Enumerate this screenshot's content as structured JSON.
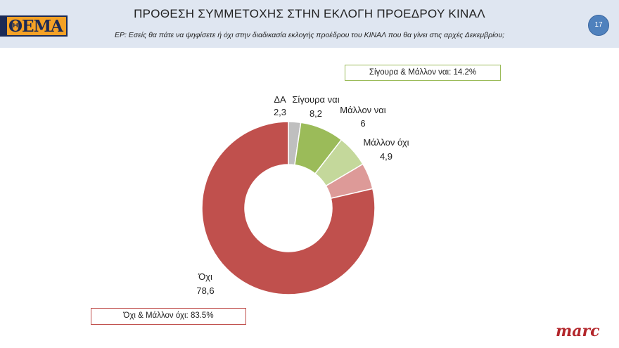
{
  "header": {
    "logo_text": "ΘΕΜΑ",
    "title": "ΠΡΟΘΕΣΗ ΣΥΜΜΕΤΟΧΗΣ ΣΤΗΝ ΕΚΛΟΓΗ ΠΡΟΕΔΡΟΥ ΚΙΝΑΛ",
    "subtitle": "ΕΡ: Εσείς θα πάτε να ψηφίσετε ή όχι στην διαδικασία εκλογής προέδρου του ΚΙΝΑΛ που θα γίνει στις αρχές Δεκεμβρίου;",
    "page_number": "17"
  },
  "summary": {
    "yes_box": "Σίγουρα & Μάλλον ναι: 14.2%",
    "no_box": "Όχι & Μάλλον όχι: 83.5%"
  },
  "footer": {
    "brand": "marc"
  },
  "chart_data": {
    "type": "pie",
    "donut": true,
    "slices": [
      {
        "label": "ΔΑ",
        "value": 2.3,
        "value_label": "2,3",
        "color": "#bfbfbf"
      },
      {
        "label": "Σίγουρα ναι",
        "value": 8.2,
        "value_label": "8,2",
        "color": "#9bbb59"
      },
      {
        "label": "Μάλλον ναι",
        "value": 6,
        "value_label": "6",
        "color": "#c4d89b"
      },
      {
        "label": "Μάλλον όχι",
        "value": 4.9,
        "value_label": "4,9",
        "color": "#dd9a98"
      },
      {
        "label": "Όχι",
        "value": 78.6,
        "value_label": "78,6",
        "color": "#c0504d"
      }
    ]
  }
}
